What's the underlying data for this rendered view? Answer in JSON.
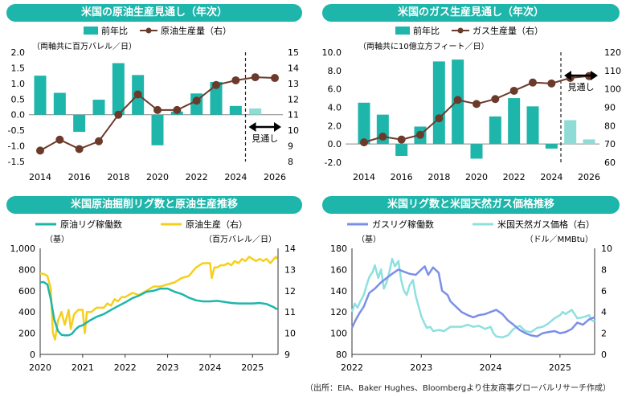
{
  "colors": {
    "teal": "#1eb5ab",
    "teal_light": "#8fdcd6",
    "brown": "#6b3a2a",
    "yellow": "#f7cf1b",
    "navy_line": "#7b8fe8",
    "cyan_line": "#8ee0e0",
    "title_bg": "#1eb5ab"
  },
  "source_note": "（出所：EIA、Baker Hughes、Bloombergより住友商事グローバルリサーチ作成）",
  "chart_data": [
    {
      "id": "oil_prod",
      "type": "bar+line",
      "title": "米国の原油生産見通し（年次）",
      "unit_note": "（両軸共に百万バレル／日）",
      "legend": [
        "前年比",
        "原油生産量（右）"
      ],
      "x": [
        2014,
        2015,
        2016,
        2017,
        2018,
        2019,
        2020,
        2021,
        2022,
        2023,
        2024,
        2025,
        2026
      ],
      "x_ticks": [
        "2014",
        "2016",
        "2018",
        "2020",
        "2022",
        "2024",
        "2026"
      ],
      "yoy": [
        1.25,
        0.7,
        -0.55,
        0.48,
        1.65,
        1.27,
        -0.98,
        0.1,
        0.68,
        1.05,
        0.28,
        0.2,
        0.0
      ],
      "production": [
        8.7,
        9.4,
        8.8,
        9.3,
        11.0,
        12.3,
        11.3,
        11.3,
        11.9,
        12.9,
        13.2,
        13.4,
        13.35
      ],
      "yoy_forecast_from": 2025,
      "left_axis": {
        "min": -1.5,
        "max": 2.0,
        "step": 0.5,
        "labels": [
          "-1.5",
          "-1.0",
          "-0.5",
          "0.0",
          "0.5",
          "1.0",
          "1.5",
          "2.0"
        ]
      },
      "right_axis": {
        "min": 8,
        "max": 15,
        "step": 1,
        "labels": [
          "8",
          "9",
          "10",
          "11",
          "12",
          "13",
          "14",
          "15"
        ]
      },
      "forecast_label": "見通し"
    },
    {
      "id": "gas_prod",
      "type": "bar+line",
      "title": "米国のガス生産見通し（年次）",
      "unit_note": "（両軸共に10億立方フィート／日）",
      "legend": [
        "前年比",
        "ガス生産量（右）"
      ],
      "x": [
        2014,
        2015,
        2016,
        2017,
        2018,
        2019,
        2020,
        2021,
        2022,
        2023,
        2024,
        2025,
        2026
      ],
      "x_ticks": [
        "2014",
        "2016",
        "2018",
        "2020",
        "2022",
        "2024",
        "2026"
      ],
      "yoy": [
        4.5,
        3.2,
        -1.3,
        1.9,
        9.0,
        9.2,
        -1.6,
        3.0,
        5.0,
        4.1,
        -0.5,
        2.6,
        0.5
      ],
      "production": [
        70.9,
        74.0,
        72.4,
        75.0,
        84.0,
        94.0,
        91.8,
        94.5,
        99.0,
        103.5,
        103.0,
        106.0,
        107.0
      ],
      "yoy_forecast_from": 2025,
      "left_axis": {
        "min": -2,
        "max": 10,
        "step": 2,
        "labels": [
          "-2.0",
          "0.0",
          "2.0",
          "4.0",
          "6.0",
          "8.0",
          "10.0"
        ]
      },
      "right_axis": {
        "min": 60,
        "max": 120,
        "step": 10,
        "labels": [
          "60",
          "70",
          "80",
          "90",
          "100",
          "110",
          "120"
        ]
      },
      "forecast_label": "見通し"
    },
    {
      "id": "oil_rigs",
      "type": "line",
      "title": "米国原油掘削リグ数と原油生産推移",
      "legend": [
        "原油リグ稼働数",
        "原油生産（右）"
      ],
      "left_unit": "（基）",
      "right_unit": "（百万バレル／日）",
      "x_ticks": [
        "2020",
        "2021",
        "2022",
        "2023",
        "2024",
        "2025"
      ],
      "x_range": [
        2020.0,
        2025.6
      ],
      "left_axis": {
        "min": 0,
        "max": 1000,
        "step": 200,
        "labels": [
          "0",
          "200",
          "400",
          "600",
          "800",
          "1,000"
        ]
      },
      "right_axis": {
        "min": 9,
        "max": 14,
        "step": 1,
        "labels": [
          "9",
          "10",
          "11",
          "12",
          "13",
          "14"
        ]
      },
      "series": [
        {
          "name": "原油リグ稼働数",
          "axis": "left",
          "color_key": "teal",
          "points": [
            [
              2020.0,
              680
            ],
            [
              2020.08,
              682
            ],
            [
              2020.17,
              660
            ],
            [
              2020.25,
              520
            ],
            [
              2020.33,
              330
            ],
            [
              2020.42,
              220
            ],
            [
              2020.5,
              185
            ],
            [
              2020.58,
              180
            ],
            [
              2020.67,
              180
            ],
            [
              2020.75,
              195
            ],
            [
              2020.83,
              235
            ],
            [
              2020.92,
              265
            ],
            [
              2021.0,
              275
            ],
            [
              2021.17,
              320
            ],
            [
              2021.33,
              355
            ],
            [
              2021.5,
              380
            ],
            [
              2021.67,
              420
            ],
            [
              2021.83,
              455
            ],
            [
              2022.0,
              490
            ],
            [
              2022.17,
              530
            ],
            [
              2022.33,
              555
            ],
            [
              2022.5,
              590
            ],
            [
              2022.67,
              600
            ],
            [
              2022.83,
              620
            ],
            [
              2023.0,
              620
            ],
            [
              2023.17,
              590
            ],
            [
              2023.33,
              570
            ],
            [
              2023.5,
              535
            ],
            [
              2023.67,
              510
            ],
            [
              2023.83,
              500
            ],
            [
              2024.0,
              500
            ],
            [
              2024.17,
              505
            ],
            [
              2024.33,
              495
            ],
            [
              2024.5,
              485
            ],
            [
              2024.67,
              480
            ],
            [
              2024.83,
              480
            ],
            [
              2025.0,
              480
            ],
            [
              2025.17,
              485
            ],
            [
              2025.33,
              475
            ],
            [
              2025.5,
              445
            ],
            [
              2025.58,
              425
            ]
          ]
        },
        {
          "name": "原油生産（右）",
          "axis": "right",
          "color_key": "yellow",
          "points": [
            [
              2020.0,
              12.8
            ],
            [
              2020.08,
              12.8
            ],
            [
              2020.17,
              12.7
            ],
            [
              2020.25,
              12.1
            ],
            [
              2020.3,
              10.0
            ],
            [
              2020.35,
              9.7
            ],
            [
              2020.42,
              10.6
            ],
            [
              2020.5,
              11.0
            ],
            [
              2020.58,
              10.4
            ],
            [
              2020.67,
              11.1
            ],
            [
              2020.72,
              10.2
            ],
            [
              2020.8,
              10.9
            ],
            [
              2020.9,
              11.1
            ],
            [
              2021.0,
              11.1
            ],
            [
              2021.05,
              10.0
            ],
            [
              2021.1,
              11.0
            ],
            [
              2021.2,
              11.0
            ],
            [
              2021.33,
              11.2
            ],
            [
              2021.5,
              11.2
            ],
            [
              2021.58,
              11.4
            ],
            [
              2021.67,
              11.3
            ],
            [
              2021.75,
              11.6
            ],
            [
              2021.83,
              11.5
            ],
            [
              2021.92,
              11.7
            ],
            [
              2022.0,
              11.7
            ],
            [
              2022.17,
              11.9
            ],
            [
              2022.33,
              11.8
            ],
            [
              2022.5,
              12.0
            ],
            [
              2022.67,
              12.2
            ],
            [
              2022.83,
              12.2
            ],
            [
              2023.0,
              12.3
            ],
            [
              2023.17,
              12.4
            ],
            [
              2023.33,
              12.6
            ],
            [
              2023.5,
              12.7
            ],
            [
              2023.67,
              13.1
            ],
            [
              2023.75,
              13.2
            ],
            [
              2023.83,
              13.3
            ],
            [
              2023.92,
              13.3
            ],
            [
              2024.0,
              13.3
            ],
            [
              2024.04,
              12.6
            ],
            [
              2024.1,
              13.1
            ],
            [
              2024.17,
              13.1
            ],
            [
              2024.25,
              13.2
            ],
            [
              2024.33,
              13.2
            ],
            [
              2024.42,
              13.3
            ],
            [
              2024.5,
              13.2
            ],
            [
              2024.58,
              13.4
            ],
            [
              2024.67,
              13.3
            ],
            [
              2024.75,
              13.5
            ],
            [
              2024.83,
              13.4
            ],
            [
              2024.92,
              13.6
            ],
            [
              2025.0,
              13.5
            ],
            [
              2025.08,
              13.4
            ],
            [
              2025.17,
              13.5
            ],
            [
              2025.25,
              13.4
            ],
            [
              2025.33,
              13.5
            ],
            [
              2025.42,
              13.3
            ],
            [
              2025.5,
              13.5
            ],
            [
              2025.55,
              13.6
            ],
            [
              2025.58,
              13.5
            ]
          ]
        }
      ]
    },
    {
      "id": "gas_rigs",
      "type": "line",
      "title": "米国リグ数と米国天然ガス価格推移",
      "legend": [
        "ガスリグ稼働数",
        "米国天然ガス価格（右）"
      ],
      "left_unit": "（基）",
      "right_unit": "（ドル／MMBtu）",
      "x_ticks": [
        "2022",
        "2023",
        "2024",
        "2025"
      ],
      "x_range": [
        2022.0,
        2025.5
      ],
      "left_axis": {
        "min": 80,
        "max": 180,
        "step": 20,
        "labels": [
          "80",
          "100",
          "120",
          "140",
          "160",
          "180"
        ]
      },
      "right_axis": {
        "min": 0,
        "max": 10,
        "step": 2,
        "labels": [
          "0",
          "2",
          "4",
          "6",
          "8",
          "10"
        ]
      },
      "series": [
        {
          "name": "ガスリグ稼働数",
          "axis": "left",
          "color_key": "navy_line",
          "points": [
            [
              2022.0,
              105
            ],
            [
              2022.05,
              112
            ],
            [
              2022.1,
              118
            ],
            [
              2022.17,
              125
            ],
            [
              2022.25,
              138
            ],
            [
              2022.33,
              142
            ],
            [
              2022.42,
              148
            ],
            [
              2022.5,
              152
            ],
            [
              2022.58,
              156
            ],
            [
              2022.67,
              160
            ],
            [
              2022.75,
              158
            ],
            [
              2022.83,
              156
            ],
            [
              2022.92,
              155
            ],
            [
              2023.0,
              160
            ],
            [
              2023.05,
              163
            ],
            [
              2023.1,
              155
            ],
            [
              2023.17,
              162
            ],
            [
              2023.25,
              157
            ],
            [
              2023.3,
              140
            ],
            [
              2023.38,
              136
            ],
            [
              2023.42,
              130
            ],
            [
              2023.5,
              125
            ],
            [
              2023.58,
              120
            ],
            [
              2023.67,
              117
            ],
            [
              2023.75,
              115
            ],
            [
              2023.83,
              117
            ],
            [
              2023.92,
              118
            ],
            [
              2024.0,
              120
            ],
            [
              2024.08,
              122
            ],
            [
              2024.17,
              118
            ],
            [
              2024.25,
              112
            ],
            [
              2024.33,
              108
            ],
            [
              2024.42,
              103
            ],
            [
              2024.5,
              100
            ],
            [
              2024.58,
              98
            ],
            [
              2024.67,
              97
            ],
            [
              2024.75,
              100
            ],
            [
              2024.83,
              101
            ],
            [
              2024.92,
              102
            ],
            [
              2025.0,
              100
            ],
            [
              2025.08,
              101
            ],
            [
              2025.17,
              104
            ],
            [
              2025.25,
              110
            ],
            [
              2025.33,
              108
            ],
            [
              2025.42,
              113
            ],
            [
              2025.5,
              115
            ]
          ]
        },
        {
          "name": "米国天然ガス価格（右）",
          "axis": "right",
          "color_key": "cyan_line",
          "points": [
            [
              2022.0,
              4.0
            ],
            [
              2022.04,
              4.8
            ],
            [
              2022.08,
              4.4
            ],
            [
              2022.12,
              5.0
            ],
            [
              2022.17,
              5.6
            ],
            [
              2022.21,
              6.5
            ],
            [
              2022.25,
              7.3
            ],
            [
              2022.3,
              7.8
            ],
            [
              2022.33,
              8.4
            ],
            [
              2022.38,
              7.2
            ],
            [
              2022.42,
              8.0
            ],
            [
              2022.46,
              6.2
            ],
            [
              2022.5,
              6.8
            ],
            [
              2022.54,
              7.8
            ],
            [
              2022.58,
              9.0
            ],
            [
              2022.62,
              8.3
            ],
            [
              2022.67,
              8.8
            ],
            [
              2022.71,
              7.0
            ],
            [
              2022.75,
              6.0
            ],
            [
              2022.79,
              5.6
            ],
            [
              2022.83,
              6.5
            ],
            [
              2022.88,
              7.0
            ],
            [
              2022.92,
              5.5
            ],
            [
              2023.0,
              3.6
            ],
            [
              2023.04,
              3.0
            ],
            [
              2023.08,
              2.5
            ],
            [
              2023.13,
              2.6
            ],
            [
              2023.17,
              2.2
            ],
            [
              2023.25,
              2.3
            ],
            [
              2023.33,
              2.2
            ],
            [
              2023.42,
              2.6
            ],
            [
              2023.5,
              2.6
            ],
            [
              2023.58,
              2.6
            ],
            [
              2023.67,
              2.8
            ],
            [
              2023.75,
              2.6
            ],
            [
              2023.83,
              2.7
            ],
            [
              2023.92,
              2.4
            ],
            [
              2024.0,
              2.6
            ],
            [
              2024.04,
              2.0
            ],
            [
              2024.08,
              1.7
            ],
            [
              2024.17,
              1.6
            ],
            [
              2024.25,
              1.8
            ],
            [
              2024.33,
              2.4
            ],
            [
              2024.42,
              2.7
            ],
            [
              2024.5,
              2.2
            ],
            [
              2024.58,
              2.1
            ],
            [
              2024.67,
              2.5
            ],
            [
              2024.75,
              2.6
            ],
            [
              2024.83,
              2.9
            ],
            [
              2024.92,
              3.4
            ],
            [
              2025.0,
              3.7
            ],
            [
              2025.04,
              4.0
            ],
            [
              2025.08,
              3.8
            ],
            [
              2025.17,
              4.2
            ],
            [
              2025.25,
              3.4
            ],
            [
              2025.33,
              3.5
            ],
            [
              2025.42,
              3.7
            ],
            [
              2025.46,
              3.2
            ],
            [
              2025.5,
              3.1
            ]
          ]
        }
      ]
    }
  ]
}
